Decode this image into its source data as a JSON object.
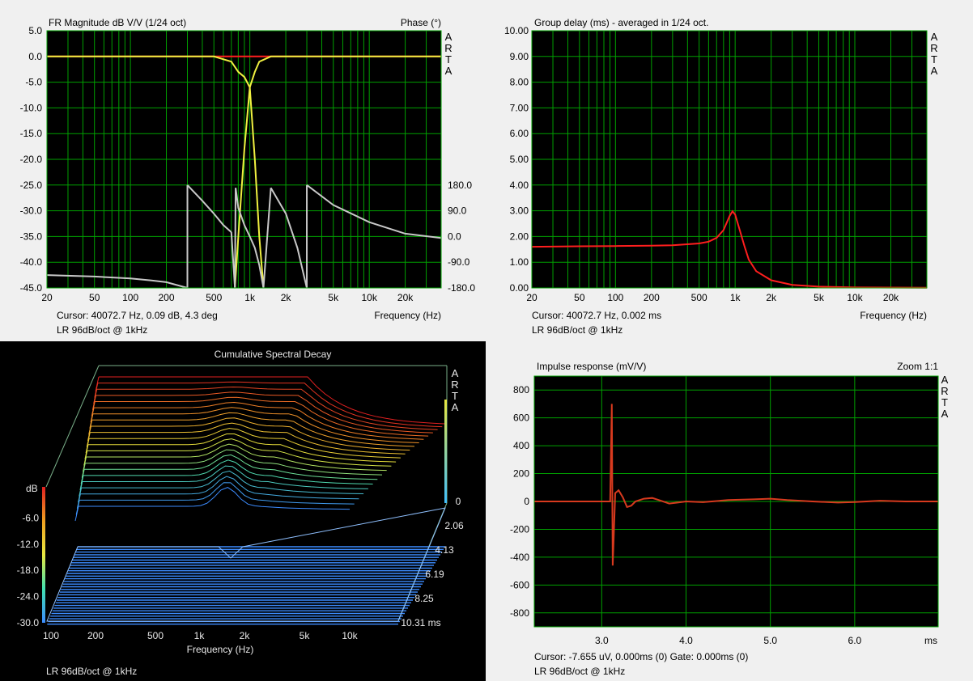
{
  "colors": {
    "grid": "#00a000",
    "plot_bg": "#000000",
    "response": "#ff1e1e",
    "phase": "#c8c8c8",
    "filter": "#f0f040",
    "csd_floor": "#3c8cff"
  },
  "arta_label": "A R T A",
  "charts": {
    "fr": {
      "title": "FR Magnitude dB V/V (1/24 oct)",
      "right_title": "Phase (°)",
      "cursor": "Cursor: 40072.7 Hz, 0.09 dB, 4.3 deg",
      "note": "LR 96dB/oct @ 1kHz",
      "xlabel": "Frequency (Hz)"
    },
    "gd": {
      "title": "Group delay (ms) - averaged in 1/24 oct.",
      "cursor": "Cursor: 40072.7 Hz, 0.002 ms",
      "note": "LR 96dB/oct @ 1kHz",
      "xlabel": "Frequency (Hz)"
    },
    "csd": {
      "title": "Cumulative Spectral Decay",
      "note": "LR 96dB/oct @ 1kHz",
      "xlabel": "Frequency (Hz)",
      "zlabel": "dB"
    },
    "ir": {
      "title": "Impulse response (mV/V)",
      "zoom": "Zoom 1:1",
      "cursor": "Cursor: -7.655 uV, 0.000ms (0)  Gate: 0.000ms (0)",
      "note": "LR 96dB/oct @ 1kHz",
      "xlabel": "ms"
    }
  },
  "chart_data": [
    {
      "type": "line",
      "name": "fr",
      "title": "FR Magnitude dB V/V (1/24 oct)",
      "x_scale": "log",
      "xlim": [
        20,
        40000
      ],
      "x_ticks": [
        "20",
        "50",
        "100",
        "200",
        "500",
        "1k",
        "2k",
        "5k",
        "10k",
        "20k"
      ],
      "x_tick_values": [
        20,
        50,
        100,
        200,
        500,
        1000,
        2000,
        5000,
        10000,
        20000
      ],
      "ylim": [
        -45,
        5
      ],
      "y_ticks": [
        "5.0",
        "0.0",
        "-5.0",
        "-10.0",
        "-15.0",
        "-20.0",
        "-25.0",
        "-30.0",
        "-35.0",
        "-40.0",
        "-45.0"
      ],
      "y_tick_values": [
        5,
        0,
        -5,
        -10,
        -15,
        -20,
        -25,
        -30,
        -35,
        -40,
        -45
      ],
      "y2lim": [
        -180,
        180
      ],
      "y2_ticks": [
        "180.0",
        "90.0",
        "0.0",
        "-90.0",
        "-180.0"
      ],
      "y2_tick_values": [
        180,
        90,
        0,
        -90,
        -180
      ],
      "grid": true,
      "series": [
        {
          "role": "magnitude_summed",
          "x": [
            20,
            100,
            500,
            1000,
            5000,
            10000,
            40000
          ],
          "values": [
            0,
            0,
            0,
            0,
            0,
            0,
            0
          ]
        },
        {
          "role": "lowpass_branch",
          "x": [
            20,
            500,
            700,
            800,
            900,
            1000,
            1100,
            1200,
            1300
          ],
          "values": [
            0,
            0,
            -1,
            -3,
            -4,
            -6,
            -20,
            -35,
            -45
          ]
        },
        {
          "role": "highpass_branch",
          "x": [
            750,
            800,
            900,
            1000,
            1100,
            1200,
            1500,
            40000
          ],
          "values": [
            -45,
            -35,
            -18,
            -6,
            -3,
            -1,
            0,
            0
          ]
        },
        {
          "role": "phase",
          "x": [
            20,
            50,
            100,
            150,
            200,
            300,
            300.1,
            400,
            500,
            600,
            700,
            750,
            760,
            800,
            900,
            1000,
            1100,
            1200,
            1300,
            1500,
            2000,
            2500,
            3000,
            3000.1,
            5000,
            10000,
            20000,
            40000
          ],
          "values": [
            -135,
            -140,
            -147,
            -154,
            -160,
            -180,
            180,
            125,
            80,
            40,
            15,
            -180,
            170,
            100,
            40,
            0,
            -40,
            -100,
            -180,
            170,
            80,
            -40,
            -180,
            180,
            110,
            50,
            10,
            -5
          ]
        }
      ]
    },
    {
      "type": "line",
      "name": "gd",
      "title": "Group delay (ms) - averaged in 1/24 oct.",
      "x_scale": "log",
      "xlim": [
        20,
        40000
      ],
      "x_ticks": [
        "20",
        "50",
        "100",
        "200",
        "500",
        "1k",
        "2k",
        "5k",
        "10k",
        "20k"
      ],
      "x_tick_values": [
        20,
        50,
        100,
        200,
        500,
        1000,
        2000,
        5000,
        10000,
        20000
      ],
      "ylim": [
        0,
        10
      ],
      "y_ticks": [
        "10.00",
        "9.00",
        "8.00",
        "7.00",
        "6.00",
        "5.00",
        "4.00",
        "3.00",
        "2.00",
        "1.00",
        "0.00"
      ],
      "y_tick_values": [
        10,
        9,
        8,
        7,
        6,
        5,
        4,
        3,
        2,
        1,
        0
      ],
      "grid": true,
      "series": [
        {
          "x": [
            20,
            50,
            100,
            200,
            300,
            500,
            600,
            700,
            800,
            900,
            950,
            1000,
            1100,
            1200,
            1300,
            1500,
            2000,
            3000,
            5000,
            10000,
            40000
          ],
          "values": [
            1.6,
            1.62,
            1.63,
            1.64,
            1.66,
            1.73,
            1.8,
            1.95,
            2.25,
            2.8,
            2.98,
            2.85,
            2.2,
            1.6,
            1.1,
            0.65,
            0.3,
            0.12,
            0.05,
            0.02,
            0.01
          ]
        }
      ]
    },
    {
      "type": "area",
      "name": "csd",
      "title": "Cumulative Spectral Decay",
      "x_scale": "log",
      "x_ticks": [
        "100",
        "200",
        "500",
        "1k",
        "2k",
        "5k",
        "10k"
      ],
      "x_tick_values": [
        100,
        200,
        500,
        1000,
        2000,
        5000,
        10000
      ],
      "z_ticks": [
        "-6.0",
        "-12.0",
        "-18.0",
        "-24.0",
        "-30.0"
      ],
      "z_tick_values": [
        -6,
        -12,
        -18,
        -24,
        -30
      ],
      "zlim": [
        -30,
        0
      ],
      "time_ticks": [
        "0",
        "2.06",
        "4.13",
        "6.19",
        "8.25",
        "10.31 ms"
      ],
      "time_tick_values": [
        0,
        2.06,
        4.13,
        6.19,
        8.25,
        10.31
      ]
    },
    {
      "type": "line",
      "name": "ir",
      "title": "Impulse response (mV/V)",
      "xlim": [
        2.2,
        6.99
      ],
      "x_ticks": [
        "3.0",
        "4.0",
        "5.0",
        "6.0"
      ],
      "x_tick_values": [
        3,
        4,
        5,
        6
      ],
      "ylim": [
        -900,
        900
      ],
      "y_ticks": [
        "800",
        "600",
        "400",
        "200",
        "0",
        "-200",
        "-400",
        "-600",
        "-800"
      ],
      "y_tick_values": [
        800,
        600,
        400,
        200,
        0,
        -200,
        -400,
        -600,
        -800
      ],
      "grid": true,
      "series": [
        {
          "x": [
            2.2,
            3.1,
            3.12,
            3.13,
            3.14,
            3.16,
            3.2,
            3.25,
            3.3,
            3.35,
            3.4,
            3.5,
            3.6,
            3.7,
            3.8,
            3.9,
            4.0,
            4.2,
            4.5,
            4.8,
            5.0,
            5.2,
            5.5,
            5.8,
            6.0,
            6.3,
            6.6,
            6.99
          ],
          "values": [
            0,
            0,
            700,
            -460,
            -300,
            60,
            80,
            30,
            -40,
            -30,
            0,
            20,
            25,
            5,
            -15,
            -8,
            0,
            -5,
            10,
            15,
            20,
            10,
            0,
            -8,
            -4,
            5,
            0,
            0
          ]
        }
      ]
    }
  ]
}
